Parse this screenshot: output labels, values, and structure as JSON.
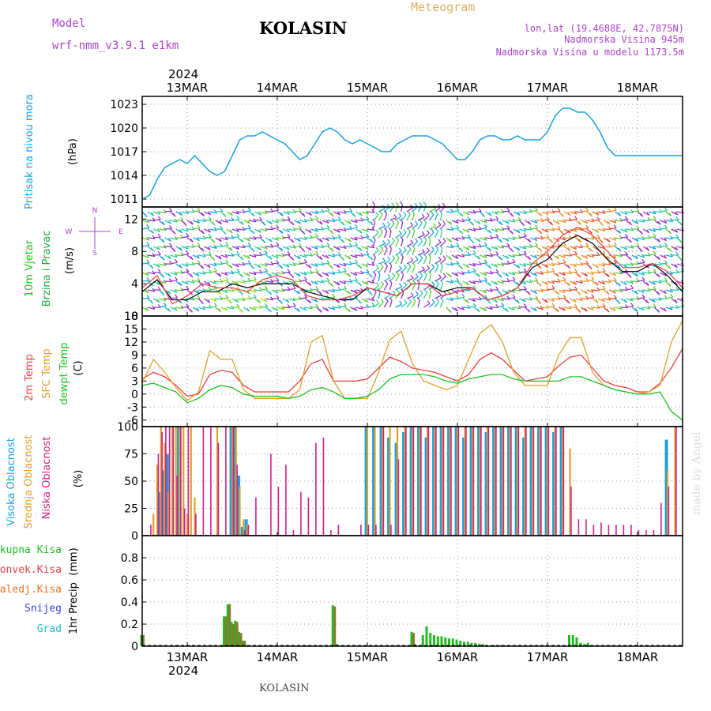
{
  "header": {
    "model_label": "Model",
    "model_name": "wrf-nmm_v3.9.1 e1km",
    "station": "KOLASIN",
    "product": "Meteogram",
    "lonlat": "lon,lat (19.4688E, 42.7875N)",
    "elevation": "Nadmorska Visina 945m",
    "model_elevation": "Nadmorska Visina u modelu 1173.5m"
  },
  "footer": {
    "station": "KOLASIN",
    "credit": "made by Angel"
  },
  "colors": {
    "pressure": "#1aa0e0",
    "wind_label": "#22bb22",
    "wind_label2": "#22aa44",
    "wind_dir_label": "#aa44cc",
    "t2m": "#e84040",
    "tsfc": "#e0a030",
    "dewpt": "#22c022",
    "cloud_high": "#1aa0e0",
    "cloud_mid": "#e0a030",
    "cloud_low": "#cc2288",
    "precip_total": "#22bb22",
    "precip_conv": "#e84040",
    "precip_frz": "#f07020",
    "precip_snow": "#4444dd",
    "precip_grad": "#20c0c0",
    "model_color": "#aa44cc",
    "meteogram_color": "#e0b060",
    "grid": "#999999"
  },
  "chart_data": [
    {
      "type": "line",
      "panel": "pressure",
      "ylabel": [
        "Pritisak na nivou mora",
        "(hPa)"
      ],
      "ylim": [
        1010,
        1024
      ],
      "yticks": [
        1011,
        1014,
        1017,
        1020,
        1023
      ],
      "x_days": [
        "13MAR",
        "14MAR",
        "15MAR",
        "16MAR",
        "17MAR",
        "18MAR"
      ],
      "year": "2024",
      "x": [
        0,
        2,
        4,
        6,
        8,
        10,
        12,
        14,
        16,
        18,
        20,
        22,
        24,
        26,
        28,
        30,
        32,
        34,
        36,
        38,
        40,
        42,
        44,
        46,
        48,
        50,
        52,
        54,
        56,
        58,
        60,
        62,
        64,
        66,
        68,
        70,
        72,
        74,
        76,
        78,
        80,
        82,
        84,
        86,
        88,
        90,
        92,
        94,
        96,
        98,
        100,
        102,
        104,
        106,
        108,
        110,
        112,
        114,
        116,
        118,
        120,
        122,
        124,
        126,
        128,
        130,
        132,
        134,
        136,
        138,
        140,
        142,
        144
      ],
      "series": [
        {
          "values": [
            1011,
            1011.5,
            1013.5,
            1015,
            1015.5,
            1016,
            1015.5,
            1016.5,
            1015.5,
            1014.5,
            1014,
            1014.5,
            1016.5,
            1018.5,
            1019,
            1019,
            1019.5,
            1019,
            1018.5,
            1018,
            1017,
            1016,
            1016.5,
            1018,
            1019.5,
            1020,
            1019.5,
            1018.5,
            1018,
            1018.5,
            1018,
            1017.5,
            1017,
            1017,
            1018,
            1018.5,
            1019,
            1019,
            1019,
            1018.5,
            1018,
            1017,
            1016,
            1016,
            1017,
            1018.5,
            1019,
            1019,
            1018.5,
            1018.5,
            1019,
            1018.5,
            1018.5,
            1018.5,
            1019.5,
            1021.5,
            1022.5,
            1022.5,
            1022,
            1022,
            1021,
            1019.5,
            1017.5,
            1016.5,
            1016.5,
            1016.5,
            1016.5,
            1016.5,
            1016.5,
            1016.5,
            1016.5,
            1016.5,
            1016.5
          ]
        }
      ]
    },
    {
      "type": "line",
      "panel": "wind",
      "ylabel": [
        "10m Vjetar",
        "Brzina i Pravac",
        "(m/s)"
      ],
      "compass": [
        "N",
        "E",
        "S",
        "W"
      ],
      "ylim": [
        0,
        13.5
      ],
      "yticks": [
        0,
        4,
        8,
        12
      ],
      "x": [
        0,
        4,
        8,
        12,
        16,
        20,
        24,
        28,
        32,
        36,
        40,
        44,
        48,
        52,
        56,
        60,
        64,
        68,
        72,
        76,
        80,
        84,
        88,
        92,
        96,
        100,
        104,
        108,
        112,
        116,
        120,
        124,
        128,
        132,
        136,
        140,
        144
      ],
      "series": [
        {
          "values": [
            3,
            4.5,
            2,
            2,
            3,
            3,
            4,
            3.5,
            4,
            4,
            4,
            3,
            2.5,
            2,
            2,
            3.5,
            3,
            2.5,
            4,
            4,
            3,
            3.5,
            3.5,
            2,
            2.5,
            3.5,
            6,
            7,
            9,
            10,
            9,
            7,
            5.5,
            5.5,
            6.5,
            5,
            3
          ]
        },
        {
          "values": [
            3.5,
            5,
            1.5,
            2.5,
            4,
            3.5,
            3.5,
            3,
            4.5,
            5,
            4.5,
            2.5,
            2,
            2,
            2.5,
            3.5,
            3,
            2.5,
            4,
            4,
            2.5,
            3,
            3.5,
            2,
            2.5,
            3.5,
            6.5,
            8,
            10,
            11,
            10,
            8,
            6,
            6,
            6.5,
            5.5,
            3.5
          ]
        }
      ]
    },
    {
      "type": "line",
      "panel": "temperature",
      "ylabel": [
        "2m Temp",
        "SFC Temp",
        "dewpt Temp",
        "(C)"
      ],
      "ylim": [
        -7.5,
        18
      ],
      "yticks": [
        -6,
        -3,
        0,
        3,
        6,
        9,
        12,
        15,
        18
      ],
      "x": [
        0,
        3,
        6,
        9,
        12,
        15,
        18,
        21,
        24,
        27,
        30,
        33,
        36,
        39,
        42,
        45,
        48,
        51,
        54,
        57,
        60,
        63,
        66,
        69,
        72,
        75,
        78,
        81,
        84,
        87,
        90,
        93,
        96,
        99,
        102,
        105,
        108,
        111,
        114,
        117,
        120,
        123,
        126,
        129,
        132,
        135,
        138,
        141,
        144
      ],
      "series": [
        {
          "name": "2m Temp",
          "values": [
            3.5,
            5,
            4,
            2,
            -0.5,
            0,
            4.5,
            5.5,
            5,
            2,
            0.5,
            0.5,
            0.5,
            0.5,
            3,
            7,
            8,
            3,
            3,
            3,
            3.5,
            6,
            8.5,
            7.5,
            6,
            5.5,
            5,
            4,
            3,
            4.5,
            8,
            9.5,
            8,
            5.5,
            3,
            3.5,
            4,
            6.5,
            8.5,
            9,
            6,
            3,
            2,
            1.5,
            0.5,
            0.5,
            2.5,
            6,
            10.5
          ]
        },
        {
          "name": "SFC Temp",
          "values": [
            2.5,
            8,
            5,
            1.5,
            -1.5,
            0.5,
            10,
            8,
            8,
            1,
            -1,
            -1,
            -1,
            -1,
            1,
            12,
            13.5,
            3,
            -1,
            -1,
            -1,
            5,
            12.5,
            14.5,
            7,
            3,
            2,
            1,
            2,
            8,
            14,
            16,
            12,
            5,
            2,
            2,
            2,
            9,
            13,
            13,
            5,
            2,
            1,
            0.5,
            0,
            0.5,
            2,
            12,
            17
          ]
        },
        {
          "name": "dewpt Temp",
          "values": [
            2,
            2.5,
            1.5,
            0.5,
            -2,
            -1,
            1,
            2,
            1.5,
            0,
            -0.5,
            -0.5,
            -0.5,
            -1,
            -0.5,
            1,
            1.5,
            0.5,
            -1,
            -1,
            -0.5,
            1,
            3.5,
            4.5,
            4.5,
            4.5,
            4,
            3,
            2.5,
            3.5,
            4,
            4.5,
            4.5,
            3.5,
            3,
            3,
            3,
            3,
            4,
            4,
            3,
            2,
            1,
            0.5,
            0,
            0,
            0.5,
            -4,
            -6
          ]
        }
      ]
    },
    {
      "type": "bar",
      "panel": "clouds",
      "ylabel": [
        "Visoka Oblacnost",
        "Srednja Oblacnost",
        "Niska Oblacnost",
        "(%)"
      ],
      "ylim": [
        0,
        100
      ],
      "yticks": [
        0,
        25,
        50,
        75,
        100
      ],
      "x": [
        2,
        3,
        4,
        5,
        6,
        7,
        8,
        9,
        10,
        11,
        12,
        13,
        14,
        15,
        16,
        18,
        20,
        22,
        24,
        25,
        26,
        27,
        28,
        30,
        32,
        34,
        36,
        38,
        40,
        42,
        44,
        46,
        48,
        50,
        52,
        58,
        60,
        62,
        64,
        66,
        68,
        70,
        72,
        74,
        76,
        78,
        80,
        82,
        84,
        86,
        88,
        90,
        92,
        94,
        96,
        98,
        100,
        102,
        104,
        106,
        108,
        110,
        112,
        114,
        116,
        118,
        120,
        122,
        124,
        126,
        128,
        130,
        132,
        134,
        136,
        138,
        140,
        142
      ],
      "series": [
        {
          "name": "Visoka Oblacnost",
          "values": [
            0,
            0,
            0,
            40,
            60,
            75,
            0,
            0,
            100,
            0,
            0,
            0,
            0,
            0,
            0,
            0,
            0,
            0,
            100,
            100,
            55,
            8,
            15,
            0,
            0,
            0,
            0,
            0,
            0,
            0,
            0,
            0,
            0,
            0,
            0,
            0,
            100,
            100,
            100,
            90,
            85,
            95,
            100,
            100,
            90,
            100,
            100,
            100,
            100,
            90,
            100,
            100,
            95,
            100,
            100,
            100,
            100,
            90,
            100,
            100,
            100,
            95,
            100,
            0,
            0,
            0,
            0,
            0,
            0,
            0,
            0,
            0,
            0,
            0,
            0,
            0,
            88,
            0
          ]
        },
        {
          "name": "Srednja Oblacnost",
          "values": [
            0,
            20,
            65,
            100,
            85,
            40,
            100,
            100,
            100,
            100,
            20,
            100,
            35,
            0,
            0,
            0,
            100,
            0,
            100,
            100,
            45,
            15,
            10,
            0,
            0,
            0,
            0,
            0,
            0,
            0,
            0,
            0,
            0,
            0,
            0,
            0,
            100,
            100,
            100,
            100,
            100,
            100,
            100,
            100,
            100,
            100,
            100,
            100,
            100,
            100,
            100,
            100,
            100,
            100,
            100,
            100,
            100,
            100,
            100,
            100,
            100,
            100,
            100,
            80,
            0,
            0,
            0,
            0,
            0,
            0,
            0,
            0,
            0,
            0,
            0,
            0,
            60,
            100
          ]
        },
        {
          "name": "Niska Oblacnost",
          "values": [
            10,
            0,
            75,
            95,
            100,
            100,
            100,
            55,
            100,
            25,
            100,
            0,
            20,
            0,
            100,
            100,
            85,
            100,
            100,
            65,
            0,
            5,
            10,
            35,
            0,
            75,
            45,
            65,
            5,
            40,
            35,
            85,
            90,
            5,
            10,
            10,
            10,
            10,
            100,
            10,
            70,
            100,
            100,
            100,
            100,
            100,
            100,
            100,
            100,
            100,
            100,
            100,
            100,
            100,
            100,
            100,
            100,
            100,
            100,
            100,
            100,
            100,
            100,
            45,
            15,
            15,
            10,
            12,
            10,
            10,
            10,
            10,
            5,
            5,
            5,
            30,
            45,
            100
          ]
        }
      ]
    },
    {
      "type": "bar",
      "panel": "precip",
      "ylabel": [
        "1hr Precip",
        "(mm)"
      ],
      "legend": [
        "Ukupna Kisa",
        "Konvek.Kisa",
        "Zaledj.Kisa",
        "Snijeg",
        "Grad"
      ],
      "ylim": [
        0,
        1.0
      ],
      "yticks": [
        0,
        0.2,
        0.4,
        0.6,
        0.8
      ],
      "x": [
        0,
        11,
        22,
        23,
        24,
        25,
        26,
        27,
        28,
        51,
        52,
        72,
        73,
        75,
        76,
        77,
        78,
        79,
        80,
        81,
        82,
        83,
        84,
        85,
        86,
        87,
        88,
        89,
        90,
        91,
        92,
        94,
        96,
        98,
        114,
        115,
        116,
        117,
        118,
        119
      ],
      "series": [
        {
          "name": "Ukupna Kisa",
          "values": [
            0.1,
            0.01,
            0.27,
            0.38,
            0.22,
            0.23,
            0.13,
            0.05,
            0.01,
            0.37,
            0.02,
            0.13,
            0.02,
            0.1,
            0.18,
            0.12,
            0.1,
            0.09,
            0.09,
            0.08,
            0.07,
            0.07,
            0.06,
            0.05,
            0.04,
            0.04,
            0.03,
            0.03,
            0.02,
            0.02,
            0.01,
            0.01,
            0.01,
            0.01,
            0.1,
            0.1,
            0.08,
            0.03,
            0.02,
            0.03
          ]
        },
        {
          "name": "Konvek.Kisa",
          "values": [
            0.1,
            0,
            0.27,
            0.38,
            0.2,
            0.22,
            0.12,
            0.05,
            0,
            0.36,
            0,
            0.12,
            0,
            0,
            0,
            0,
            0,
            0,
            0,
            0,
            0,
            0,
            0,
            0,
            0,
            0,
            0,
            0,
            0,
            0,
            0,
            0,
            0,
            0,
            0,
            0,
            0,
            0,
            0,
            0
          ]
        }
      ]
    }
  ]
}
